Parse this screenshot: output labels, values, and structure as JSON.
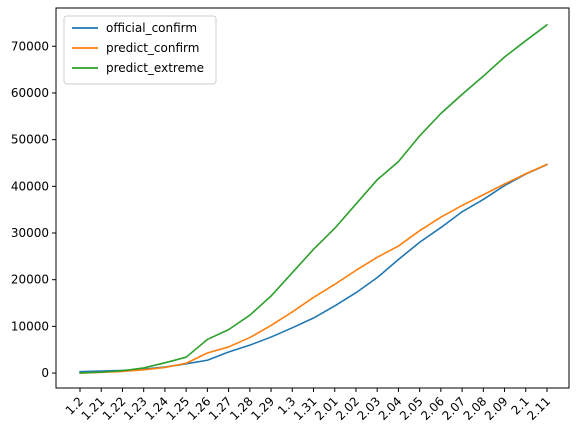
{
  "chart_data": {
    "type": "line",
    "title": "",
    "xlabel": "",
    "ylabel": "",
    "categories": [
      "1.2",
      "1.21",
      "1.22",
      "1.23",
      "1.24",
      "1.25",
      "1.26",
      "1.27",
      "1.28",
      "1.29",
      "1.3",
      "1.31",
      "2.01",
      "2.02",
      "2.03",
      "2.04",
      "2.05",
      "2.06",
      "2.07",
      "2.08",
      "2.09",
      "2.1",
      "2.11"
    ],
    "yticks": [
      0,
      10000,
      20000,
      30000,
      40000,
      50000,
      60000,
      70000
    ],
    "ylim": [
      -3200,
      78200
    ],
    "grid": false,
    "legend_position": "top-left",
    "series": [
      {
        "name": "official_confirm",
        "color": "#1f77b4",
        "values": [
          291,
          440,
          571,
          830,
          1287,
          1975,
          2744,
          4515,
          5974,
          7711,
          9692,
          11791,
          14380,
          17205,
          20438,
          24324,
          28018,
          31161,
          34546,
          37198,
          40171,
          42638,
          44653
        ]
      },
      {
        "name": "predict_confirm",
        "color": "#ff7f0e",
        "values": [
          0,
          150,
          350,
          700,
          1200,
          2100,
          4300,
          5600,
          7600,
          10200,
          13100,
          16200,
          19000,
          22000,
          24800,
          27200,
          30500,
          33400,
          35900,
          38200,
          40500,
          42700,
          44700
        ]
      },
      {
        "name": "predict_extreme",
        "color": "#2ca02c",
        "values": [
          0,
          200,
          500,
          1100,
          2200,
          3400,
          7200,
          9300,
          12400,
          16500,
          21500,
          26500,
          31000,
          36200,
          41400,
          45300,
          50800,
          55600,
          59700,
          63600,
          67700,
          71200,
          74600
        ]
      }
    ]
  }
}
